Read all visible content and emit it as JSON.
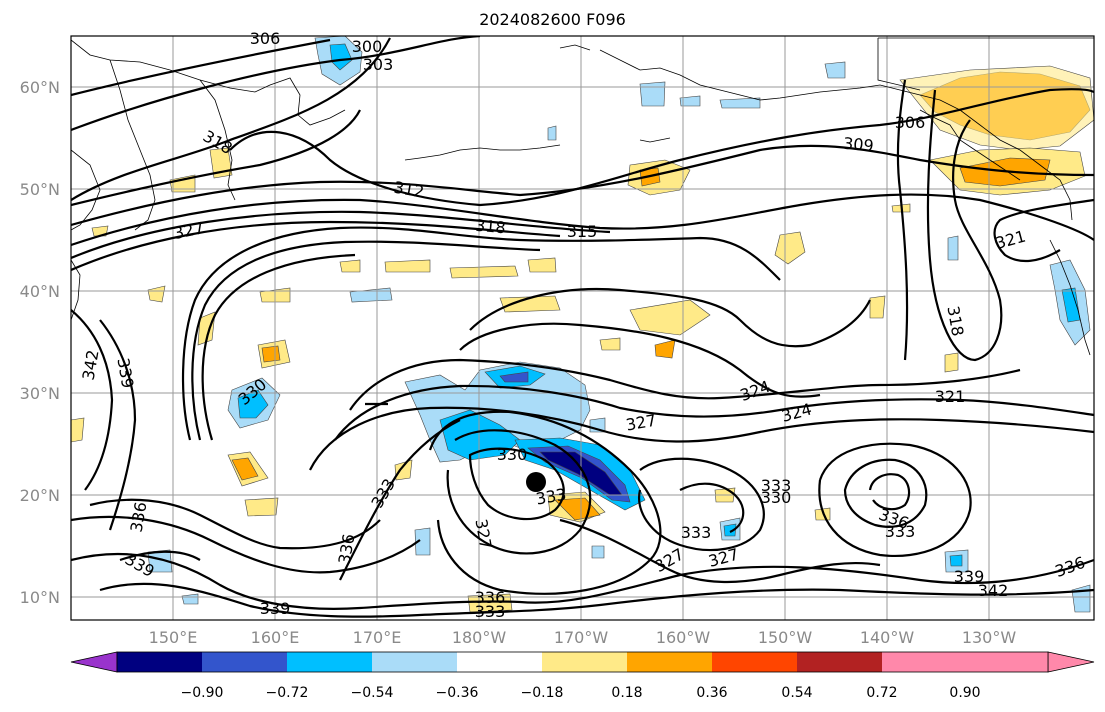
{
  "title": "2024082600 F096",
  "lat_labels": [
    "60°N",
    "50°N",
    "40°N",
    "30°N",
    "20°N",
    "10°N"
  ],
  "lon_labels": [
    "150°E",
    "160°E",
    "170°E",
    "180°W",
    "170°W",
    "160°W",
    "150°W",
    "140°W",
    "130°W"
  ],
  "contour_labels": [
    "306",
    "300",
    "303",
    "318",
    "312",
    "327",
    "318",
    "315",
    "309",
    "306",
    "321",
    "318",
    "342",
    "339",
    "330",
    "324",
    "324",
    "321",
    "327",
    "330",
    "333",
    "333",
    "330",
    "333",
    "327",
    "327",
    "336",
    "333",
    "336",
    "339",
    "339",
    "342",
    "336",
    "339",
    "336",
    "333",
    "332"
  ],
  "colorbar": {
    "ticks": [
      "−0.90",
      "−0.72",
      "−0.54",
      "−0.36",
      "−0.18",
      "0.18",
      "0.36",
      "0.54",
      "0.72",
      "0.90"
    ],
    "colors": [
      "#9933cc",
      "#000080",
      "#3355cc",
      "#00bfff",
      "#aadcf8",
      "#ffffff",
      "#ffea88",
      "#ffa500",
      "#ff4500",
      "#b22222",
      "#ff88aa"
    ]
  }
}
